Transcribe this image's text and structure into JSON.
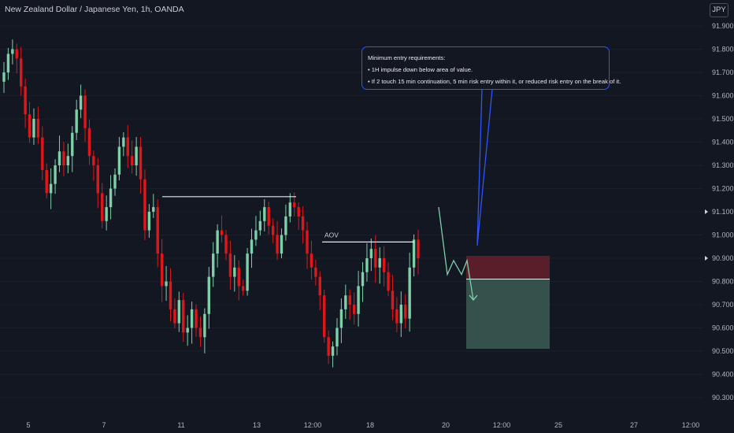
{
  "header": {
    "symbol_title": "New Zealand Dollar / Japanese Yen, 1h, OANDA",
    "currency_button": "JPY"
  },
  "annotation": {
    "title": "Minimum entry requirements:",
    "bullet1": "• 1H impulse down below area of value.",
    "bullet2": "• If 2 touch 15 min continuation, 5 min risk entry within it, or reduced risk entry on the break of it.",
    "border_color": "#3054ff"
  },
  "aov_label": "AOV",
  "colors": {
    "up": "#7fcfa8",
    "down": "#e0171a",
    "background": "#131722",
    "stop_zone": "#5a1e2a",
    "target_zone": "#34514c",
    "projection": "#7fcfa8"
  },
  "chart_data": {
    "type": "candlestick",
    "title": "New Zealand Dollar / Japanese Yen, 1h, OANDA",
    "y_unit": "JPY",
    "ylim": [
      90.28,
      91.95
    ],
    "y_ticks": [
      "91.900",
      "91.800",
      "91.700",
      "91.600",
      "91.500",
      "91.400",
      "91.300",
      "91.200",
      "91.100",
      "91.000",
      "90.900",
      "90.800",
      "90.700",
      "90.600",
      "90.500",
      "90.400",
      "90.300"
    ],
    "x_tick_labels": [
      "5",
      "7",
      "11",
      "13",
      "12:00",
      "18",
      "20",
      "12:00",
      "25",
      "27",
      "12:00"
    ],
    "current_price_marker": 90.9,
    "lower_marker": 91.1,
    "levels": [
      {
        "name": "swing-high-line",
        "price": 91.165
      },
      {
        "name": "aov-line",
        "price": 90.97
      }
    ],
    "risk_reward": {
      "entry": 90.81,
      "stop": 90.91,
      "target": 90.51
    },
    "projected_path": [
      91.12,
      90.83,
      90.89,
      90.83,
      90.89,
      90.72
    ],
    "close_path": [
      91.7,
      91.78,
      91.8,
      91.76,
      91.64,
      91.52,
      91.42,
      91.5,
      91.42,
      91.28,
      91.18,
      91.22,
      91.3,
      91.36,
      91.3,
      91.34,
      91.44,
      91.54,
      91.6,
      91.46,
      91.34,
      91.3,
      91.18,
      91.06,
      91.12,
      91.2,
      91.26,
      91.38,
      91.42,
      91.34,
      91.3,
      91.38,
      91.24,
      91.02,
      91.1,
      91.12,
      90.92,
      90.78,
      90.8,
      90.68,
      90.62,
      90.72,
      90.58,
      90.6,
      90.68,
      90.6,
      90.56,
      90.66,
      90.82,
      90.92,
      91.02,
      91.0,
      90.92,
      90.82,
      90.86,
      90.78,
      90.76,
      90.92,
      90.98,
      91.02,
      91.06,
      91.12,
      91.04,
      91.0,
      90.92,
      91.0,
      91.08,
      91.14,
      91.12,
      91.08,
      91.02,
      90.92,
      90.86,
      90.82,
      90.74,
      90.56,
      90.48,
      90.52,
      90.6,
      90.68,
      90.74,
      90.7,
      90.66,
      90.78,
      90.84,
      90.9,
      90.94,
      90.86,
      90.9,
      90.84,
      90.76,
      90.68,
      90.62,
      90.7,
      90.64,
      90.86,
      90.98,
      90.9
    ]
  }
}
